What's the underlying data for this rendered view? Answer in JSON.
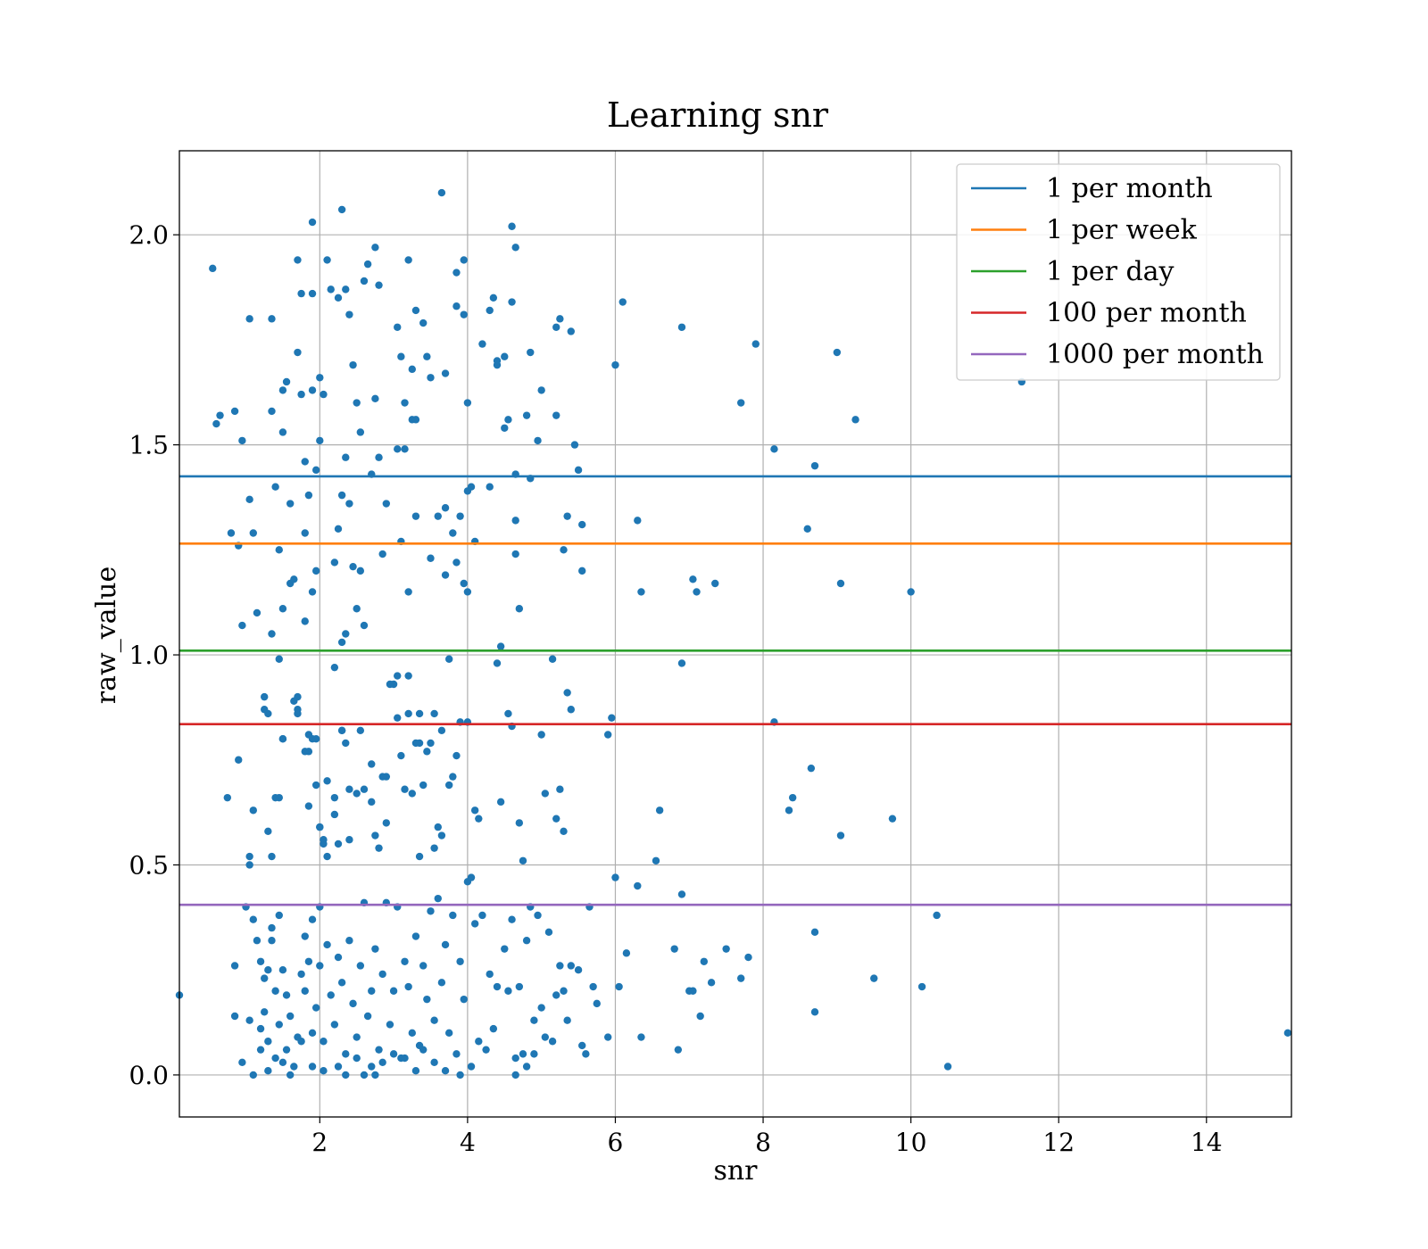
{
  "chart_data": {
    "type": "scatter",
    "title": "Learning snr",
    "xlabel": "snr",
    "ylabel": "raw_value",
    "xlim": [
      0.1,
      15.15
    ],
    "ylim": [
      -0.1,
      2.2
    ],
    "xticks": [
      2,
      4,
      6,
      8,
      10,
      12,
      14
    ],
    "yticks": [
      0.0,
      0.5,
      1.0,
      1.5,
      2.0
    ],
    "grid": true,
    "legend_position": "top-right",
    "point_color": "#1f77b4",
    "hlines": [
      {
        "name": "1 per month",
        "y": 1.425,
        "color": "#1f77b4"
      },
      {
        "name": "1 per week",
        "y": 1.265,
        "color": "#ff7f0e"
      },
      {
        "name": "1 per day",
        "y": 1.01,
        "color": "#2ca02c"
      },
      {
        "name": "100 per month",
        "y": 0.835,
        "color": "#d62728"
      },
      {
        "name": "1000 per month",
        "y": 0.405,
        "color": "#9467bd"
      }
    ],
    "points": [
      [
        0.1,
        0.19
      ],
      [
        0.55,
        1.92
      ],
      [
        0.6,
        1.55
      ],
      [
        0.65,
        1.57
      ],
      [
        0.75,
        0.66
      ],
      [
        0.8,
        1.29
      ],
      [
        0.85,
        1.58
      ],
      [
        0.9,
        1.26
      ],
      [
        0.9,
        0.75
      ],
      [
        0.95,
        1.51
      ],
      [
        0.95,
        1.07
      ],
      [
        1.05,
        1.8
      ],
      [
        1.05,
        1.37
      ],
      [
        1.05,
        0.52
      ],
      [
        1.05,
        0.5
      ],
      [
        1.1,
        1.29
      ],
      [
        1.1,
        0.63
      ],
      [
        1.15,
        1.1
      ],
      [
        1.25,
        0.9
      ],
      [
        1.25,
        0.87
      ],
      [
        1.3,
        0.58
      ],
      [
        1.35,
        1.8
      ],
      [
        1.35,
        1.58
      ],
      [
        1.35,
        1.05
      ],
      [
        1.35,
        0.52
      ],
      [
        1.4,
        1.4
      ],
      [
        1.45,
        1.25
      ],
      [
        1.45,
        0.99
      ],
      [
        1.45,
        0.66
      ],
      [
        1.5,
        1.63
      ],
      [
        1.5,
        1.53
      ],
      [
        1.5,
        1.11
      ],
      [
        1.5,
        0.8
      ],
      [
        1.55,
        1.65
      ],
      [
        1.6,
        1.36
      ],
      [
        1.6,
        1.17
      ],
      [
        1.65,
        1.18
      ],
      [
        1.7,
        1.94
      ],
      [
        1.7,
        1.72
      ],
      [
        1.7,
        0.9
      ],
      [
        1.7,
        0.87
      ],
      [
        1.75,
        1.86
      ],
      [
        1.75,
        1.62
      ],
      [
        1.8,
        1.46
      ],
      [
        1.8,
        1.29
      ],
      [
        1.8,
        1.08
      ],
      [
        1.85,
        1.38
      ],
      [
        1.85,
        0.77
      ],
      [
        1.85,
        0.64
      ],
      [
        1.9,
        2.03
      ],
      [
        1.9,
        1.86
      ],
      [
        1.9,
        1.63
      ],
      [
        1.9,
        1.15
      ],
      [
        1.95,
        1.44
      ],
      [
        1.95,
        1.2
      ],
      [
        1.95,
        0.69
      ],
      [
        2.0,
        1.51
      ],
      [
        2.0,
        1.66
      ],
      [
        2.0,
        0.59
      ],
      [
        2.05,
        1.62
      ],
      [
        2.05,
        0.56
      ],
      [
        2.1,
        1.94
      ],
      [
        2.1,
        0.52
      ],
      [
        2.15,
        1.87
      ],
      [
        2.2,
        1.22
      ],
      [
        2.2,
        0.97
      ],
      [
        2.2,
        0.66
      ],
      [
        2.25,
        1.85
      ],
      [
        2.25,
        1.3
      ],
      [
        2.3,
        2.06
      ],
      [
        2.3,
        1.38
      ],
      [
        2.3,
        1.03
      ],
      [
        2.3,
        0.82
      ],
      [
        2.35,
        1.87
      ],
      [
        2.35,
        1.47
      ],
      [
        2.35,
        1.05
      ],
      [
        2.4,
        1.81
      ],
      [
        2.4,
        1.36
      ],
      [
        2.4,
        0.68
      ],
      [
        2.45,
        1.69
      ],
      [
        2.45,
        1.21
      ],
      [
        2.5,
        1.6
      ],
      [
        2.5,
        1.11
      ],
      [
        2.55,
        1.53
      ],
      [
        2.55,
        1.2
      ],
      [
        2.6,
        1.89
      ],
      [
        2.6,
        1.07
      ],
      [
        2.65,
        1.93
      ],
      [
        2.7,
        1.43
      ],
      [
        2.7,
        0.74
      ],
      [
        2.75,
        1.97
      ],
      [
        2.75,
        1.61
      ],
      [
        2.8,
        1.88
      ],
      [
        2.8,
        1.47
      ],
      [
        2.85,
        1.24
      ],
      [
        2.9,
        1.36
      ],
      [
        2.9,
        0.71
      ],
      [
        3.0,
        0.93
      ],
      [
        3.05,
        1.78
      ],
      [
        3.05,
        1.49
      ],
      [
        3.05,
        0.95
      ],
      [
        3.1,
        1.71
      ],
      [
        3.1,
        1.27
      ],
      [
        3.15,
        1.6
      ],
      [
        3.15,
        1.49
      ],
      [
        3.2,
        1.94
      ],
      [
        3.2,
        1.15
      ],
      [
        3.2,
        0.95
      ],
      [
        3.25,
        1.68
      ],
      [
        3.25,
        1.56
      ],
      [
        3.3,
        1.82
      ],
      [
        3.3,
        1.56
      ],
      [
        3.3,
        1.33
      ],
      [
        3.35,
        0.86
      ],
      [
        3.35,
        0.79
      ],
      [
        3.4,
        1.79
      ],
      [
        3.45,
        1.71
      ],
      [
        3.5,
        1.66
      ],
      [
        3.5,
        1.23
      ],
      [
        3.55,
        0.86
      ],
      [
        3.6,
        1.33
      ],
      [
        3.65,
        2.1
      ],
      [
        3.65,
        0.82
      ],
      [
        3.7,
        1.67
      ],
      [
        3.7,
        1.35
      ],
      [
        3.7,
        1.19
      ],
      [
        3.75,
        0.99
      ],
      [
        3.8,
        1.29
      ],
      [
        3.85,
        1.91
      ],
      [
        3.85,
        1.83
      ],
      [
        3.85,
        1.22
      ],
      [
        3.9,
        1.33
      ],
      [
        3.95,
        1.94
      ],
      [
        3.95,
        1.81
      ],
      [
        3.95,
        1.17
      ],
      [
        4.0,
        1.6
      ],
      [
        4.0,
        1.39
      ],
      [
        4.0,
        1.15
      ],
      [
        4.05,
        1.4
      ],
      [
        4.1,
        1.27
      ],
      [
        4.2,
        1.74
      ],
      [
        4.3,
        1.82
      ],
      [
        4.3,
        1.4
      ],
      [
        4.35,
        1.85
      ],
      [
        4.4,
        1.7
      ],
      [
        4.4,
        1.69
      ],
      [
        4.45,
        1.02
      ],
      [
        4.5,
        1.54
      ],
      [
        4.5,
        1.71
      ],
      [
        4.55,
        1.56
      ],
      [
        4.6,
        2.02
      ],
      [
        4.6,
        1.84
      ],
      [
        4.65,
        1.97
      ],
      [
        4.65,
        1.43
      ],
      [
        4.65,
        1.32
      ],
      [
        4.65,
        1.24
      ],
      [
        4.7,
        1.11
      ],
      [
        4.8,
        1.57
      ],
      [
        4.85,
        1.72
      ],
      [
        4.85,
        1.42
      ],
      [
        4.95,
        1.51
      ],
      [
        5.0,
        1.63
      ],
      [
        5.2,
        1.57
      ],
      [
        5.2,
        1.78
      ],
      [
        5.25,
        1.8
      ],
      [
        5.3,
        1.25
      ],
      [
        5.35,
        1.33
      ],
      [
        5.4,
        1.77
      ],
      [
        5.45,
        1.5
      ],
      [
        5.5,
        1.44
      ],
      [
        5.55,
        1.31
      ],
      [
        5.55,
        1.2
      ],
      [
        6.0,
        1.69
      ],
      [
        6.1,
        1.84
      ],
      [
        6.3,
        1.32
      ],
      [
        6.35,
        1.15
      ],
      [
        6.9,
        1.78
      ],
      [
        7.05,
        1.18
      ],
      [
        7.1,
        1.15
      ],
      [
        7.35,
        1.17
      ],
      [
        7.7,
        1.6
      ],
      [
        7.9,
        1.74
      ],
      [
        8.15,
        1.49
      ],
      [
        8.6,
        1.3
      ],
      [
        8.7,
        1.45
      ],
      [
        9.0,
        1.72
      ],
      [
        9.05,
        1.17
      ],
      [
        9.25,
        1.56
      ],
      [
        10.0,
        1.15
      ],
      [
        11.5,
        1.65
      ],
      [
        1.3,
        0.86
      ],
      [
        1.4,
        0.66
      ],
      [
        1.5,
        0.8
      ],
      [
        1.65,
        0.89
      ],
      [
        1.7,
        0.86
      ],
      [
        1.8,
        0.77
      ],
      [
        1.85,
        0.81
      ],
      [
        1.9,
        0.8
      ],
      [
        1.95,
        0.8
      ],
      [
        2.0,
        0.59
      ],
      [
        2.05,
        0.55
      ],
      [
        2.1,
        0.7
      ],
      [
        2.2,
        0.62
      ],
      [
        2.25,
        0.55
      ],
      [
        2.3,
        0.82
      ],
      [
        2.35,
        0.79
      ],
      [
        2.4,
        0.56
      ],
      [
        2.5,
        0.67
      ],
      [
        2.55,
        0.82
      ],
      [
        2.6,
        0.68
      ],
      [
        2.7,
        0.65
      ],
      [
        2.75,
        0.57
      ],
      [
        2.8,
        0.54
      ],
      [
        2.85,
        0.71
      ],
      [
        2.9,
        0.6
      ],
      [
        2.95,
        0.93
      ],
      [
        3.05,
        0.85
      ],
      [
        3.1,
        0.76
      ],
      [
        3.15,
        0.68
      ],
      [
        3.2,
        0.86
      ],
      [
        3.25,
        0.67
      ],
      [
        3.3,
        0.79
      ],
      [
        3.35,
        0.52
      ],
      [
        3.4,
        0.69
      ],
      [
        3.45,
        0.77
      ],
      [
        3.5,
        0.79
      ],
      [
        3.55,
        0.54
      ],
      [
        3.6,
        0.59
      ],
      [
        3.65,
        0.57
      ],
      [
        3.75,
        0.69
      ],
      [
        3.8,
        0.71
      ],
      [
        3.85,
        0.76
      ],
      [
        3.9,
        0.84
      ],
      [
        4.0,
        0.84
      ],
      [
        4.1,
        0.63
      ],
      [
        4.15,
        0.61
      ],
      [
        4.4,
        0.98
      ],
      [
        4.45,
        0.65
      ],
      [
        4.55,
        0.86
      ],
      [
        4.6,
        0.83
      ],
      [
        4.7,
        0.6
      ],
      [
        4.75,
        0.51
      ],
      [
        5.0,
        0.81
      ],
      [
        5.05,
        0.67
      ],
      [
        5.15,
        0.99
      ],
      [
        5.2,
        0.61
      ],
      [
        5.25,
        0.68
      ],
      [
        5.3,
        0.58
      ],
      [
        5.35,
        0.91
      ],
      [
        5.4,
        0.87
      ],
      [
        5.9,
        0.81
      ],
      [
        5.95,
        0.85
      ],
      [
        6.55,
        0.51
      ],
      [
        6.6,
        0.63
      ],
      [
        6.9,
        0.98
      ],
      [
        8.15,
        0.84
      ],
      [
        8.35,
        0.63
      ],
      [
        8.4,
        0.66
      ],
      [
        8.65,
        0.73
      ],
      [
        9.05,
        0.57
      ],
      [
        9.75,
        0.61
      ],
      [
        0.85,
        0.26
      ],
      [
        0.85,
        0.14
      ],
      [
        0.95,
        0.03
      ],
      [
        1.0,
        0.4
      ],
      [
        1.05,
        0.13
      ],
      [
        1.1,
        0.37
      ],
      [
        1.15,
        0.32
      ],
      [
        1.2,
        0.27
      ],
      [
        1.2,
        0.11
      ],
      [
        1.25,
        0.23
      ],
      [
        1.25,
        0.15
      ],
      [
        1.3,
        0.25
      ],
      [
        1.3,
        0.08
      ],
      [
        1.35,
        0.35
      ],
      [
        1.35,
        0.32
      ],
      [
        1.4,
        0.2
      ],
      [
        1.4,
        0.04
      ],
      [
        1.45,
        0.38
      ],
      [
        1.45,
        0.12
      ],
      [
        1.5,
        0.25
      ],
      [
        1.55,
        0.19
      ],
      [
        1.55,
        0.06
      ],
      [
        1.6,
        0.14
      ],
      [
        1.65,
        0.02
      ],
      [
        1.7,
        0.09
      ],
      [
        1.75,
        0.24
      ],
      [
        1.8,
        0.33
      ],
      [
        1.8,
        0.2
      ],
      [
        1.85,
        0.27
      ],
      [
        1.9,
        0.37
      ],
      [
        1.9,
        0.1
      ],
      [
        1.95,
        0.16
      ],
      [
        2.0,
        0.4
      ],
      [
        2.0,
        0.26
      ],
      [
        2.05,
        0.08
      ],
      [
        2.1,
        0.31
      ],
      [
        2.15,
        0.19
      ],
      [
        2.2,
        0.12
      ],
      [
        2.25,
        0.28
      ],
      [
        2.3,
        0.22
      ],
      [
        2.35,
        0.05
      ],
      [
        2.4,
        0.32
      ],
      [
        2.45,
        0.17
      ],
      [
        2.5,
        0.09
      ],
      [
        2.55,
        0.26
      ],
      [
        2.6,
        0.41
      ],
      [
        2.65,
        0.14
      ],
      [
        2.7,
        0.2
      ],
      [
        2.75,
        0.3
      ],
      [
        2.8,
        0.06
      ],
      [
        2.85,
        0.24
      ],
      [
        2.9,
        0.41
      ],
      [
        2.95,
        0.12
      ],
      [
        3.0,
        0.2
      ],
      [
        3.05,
        0.4
      ],
      [
        3.1,
        0.04
      ],
      [
        3.15,
        0.27
      ],
      [
        3.2,
        0.21
      ],
      [
        3.25,
        0.1
      ],
      [
        3.3,
        0.33
      ],
      [
        3.35,
        0.07
      ],
      [
        3.4,
        0.26
      ],
      [
        3.45,
        0.18
      ],
      [
        3.5,
        0.39
      ],
      [
        3.55,
        0.13
      ],
      [
        3.6,
        0.42
      ],
      [
        3.65,
        0.22
      ],
      [
        3.7,
        0.31
      ],
      [
        3.75,
        0.1
      ],
      [
        3.8,
        0.38
      ],
      [
        3.85,
        0.05
      ],
      [
        3.9,
        0.27
      ],
      [
        3.95,
        0.18
      ],
      [
        4.0,
        0.46
      ],
      [
        4.05,
        0.47
      ],
      [
        4.1,
        0.36
      ],
      [
        4.15,
        0.08
      ],
      [
        4.2,
        0.38
      ],
      [
        4.3,
        0.24
      ],
      [
        4.35,
        0.11
      ],
      [
        4.4,
        0.21
      ],
      [
        4.5,
        0.3
      ],
      [
        4.55,
        0.2
      ],
      [
        4.6,
        0.37
      ],
      [
        4.65,
        0.04
      ],
      [
        4.7,
        0.21
      ],
      [
        4.75,
        0.05
      ],
      [
        4.8,
        0.32
      ],
      [
        4.85,
        0.4
      ],
      [
        4.9,
        0.13
      ],
      [
        4.95,
        0.38
      ],
      [
        5.0,
        0.16
      ],
      [
        5.05,
        0.09
      ],
      [
        5.1,
        0.34
      ],
      [
        5.15,
        0.08
      ],
      [
        5.2,
        0.19
      ],
      [
        5.25,
        0.26
      ],
      [
        5.3,
        0.2
      ],
      [
        5.35,
        0.13
      ],
      [
        5.4,
        0.26
      ],
      [
        5.5,
        0.25
      ],
      [
        5.55,
        0.07
      ],
      [
        5.6,
        0.05
      ],
      [
        5.65,
        0.4
      ],
      [
        5.7,
        0.21
      ],
      [
        5.75,
        0.17
      ],
      [
        5.9,
        0.09
      ],
      [
        6.0,
        0.47
      ],
      [
        6.05,
        0.21
      ],
      [
        6.15,
        0.29
      ],
      [
        6.3,
        0.45
      ],
      [
        6.35,
        0.09
      ],
      [
        6.8,
        0.3
      ],
      [
        6.85,
        0.06
      ],
      [
        6.9,
        0.43
      ],
      [
        7.0,
        0.2
      ],
      [
        7.05,
        0.2
      ],
      [
        7.15,
        0.14
      ],
      [
        7.2,
        0.27
      ],
      [
        7.3,
        0.22
      ],
      [
        7.5,
        0.3
      ],
      [
        7.7,
        0.23
      ],
      [
        7.8,
        0.28
      ],
      [
        8.7,
        0.34
      ],
      [
        8.7,
        0.15
      ],
      [
        9.5,
        0.23
      ],
      [
        10.15,
        0.21
      ],
      [
        10.35,
        0.38
      ],
      [
        10.5,
        0.02
      ],
      [
        15.1,
        0.1
      ],
      [
        1.1,
        0.0
      ],
      [
        1.2,
        0.06
      ],
      [
        1.3,
        0.01
      ],
      [
        1.5,
        0.03
      ],
      [
        1.6,
        0.0
      ],
      [
        1.75,
        0.08
      ],
      [
        1.9,
        0.02
      ],
      [
        2.05,
        0.01
      ],
      [
        2.25,
        0.02
      ],
      [
        2.35,
        0.0
      ],
      [
        2.5,
        0.04
      ],
      [
        2.6,
        0.0
      ],
      [
        2.7,
        0.02
      ],
      [
        2.75,
        0.0
      ],
      [
        2.85,
        0.03
      ],
      [
        3.0,
        0.05
      ],
      [
        3.15,
        0.04
      ],
      [
        3.3,
        0.01
      ],
      [
        3.4,
        0.06
      ],
      [
        3.55,
        0.03
      ],
      [
        3.7,
        0.01
      ],
      [
        3.9,
        0.0
      ],
      [
        4.05,
        0.02
      ],
      [
        4.25,
        0.06
      ],
      [
        4.65,
        0.0
      ],
      [
        4.8,
        0.02
      ],
      [
        4.9,
        0.05
      ]
    ]
  }
}
